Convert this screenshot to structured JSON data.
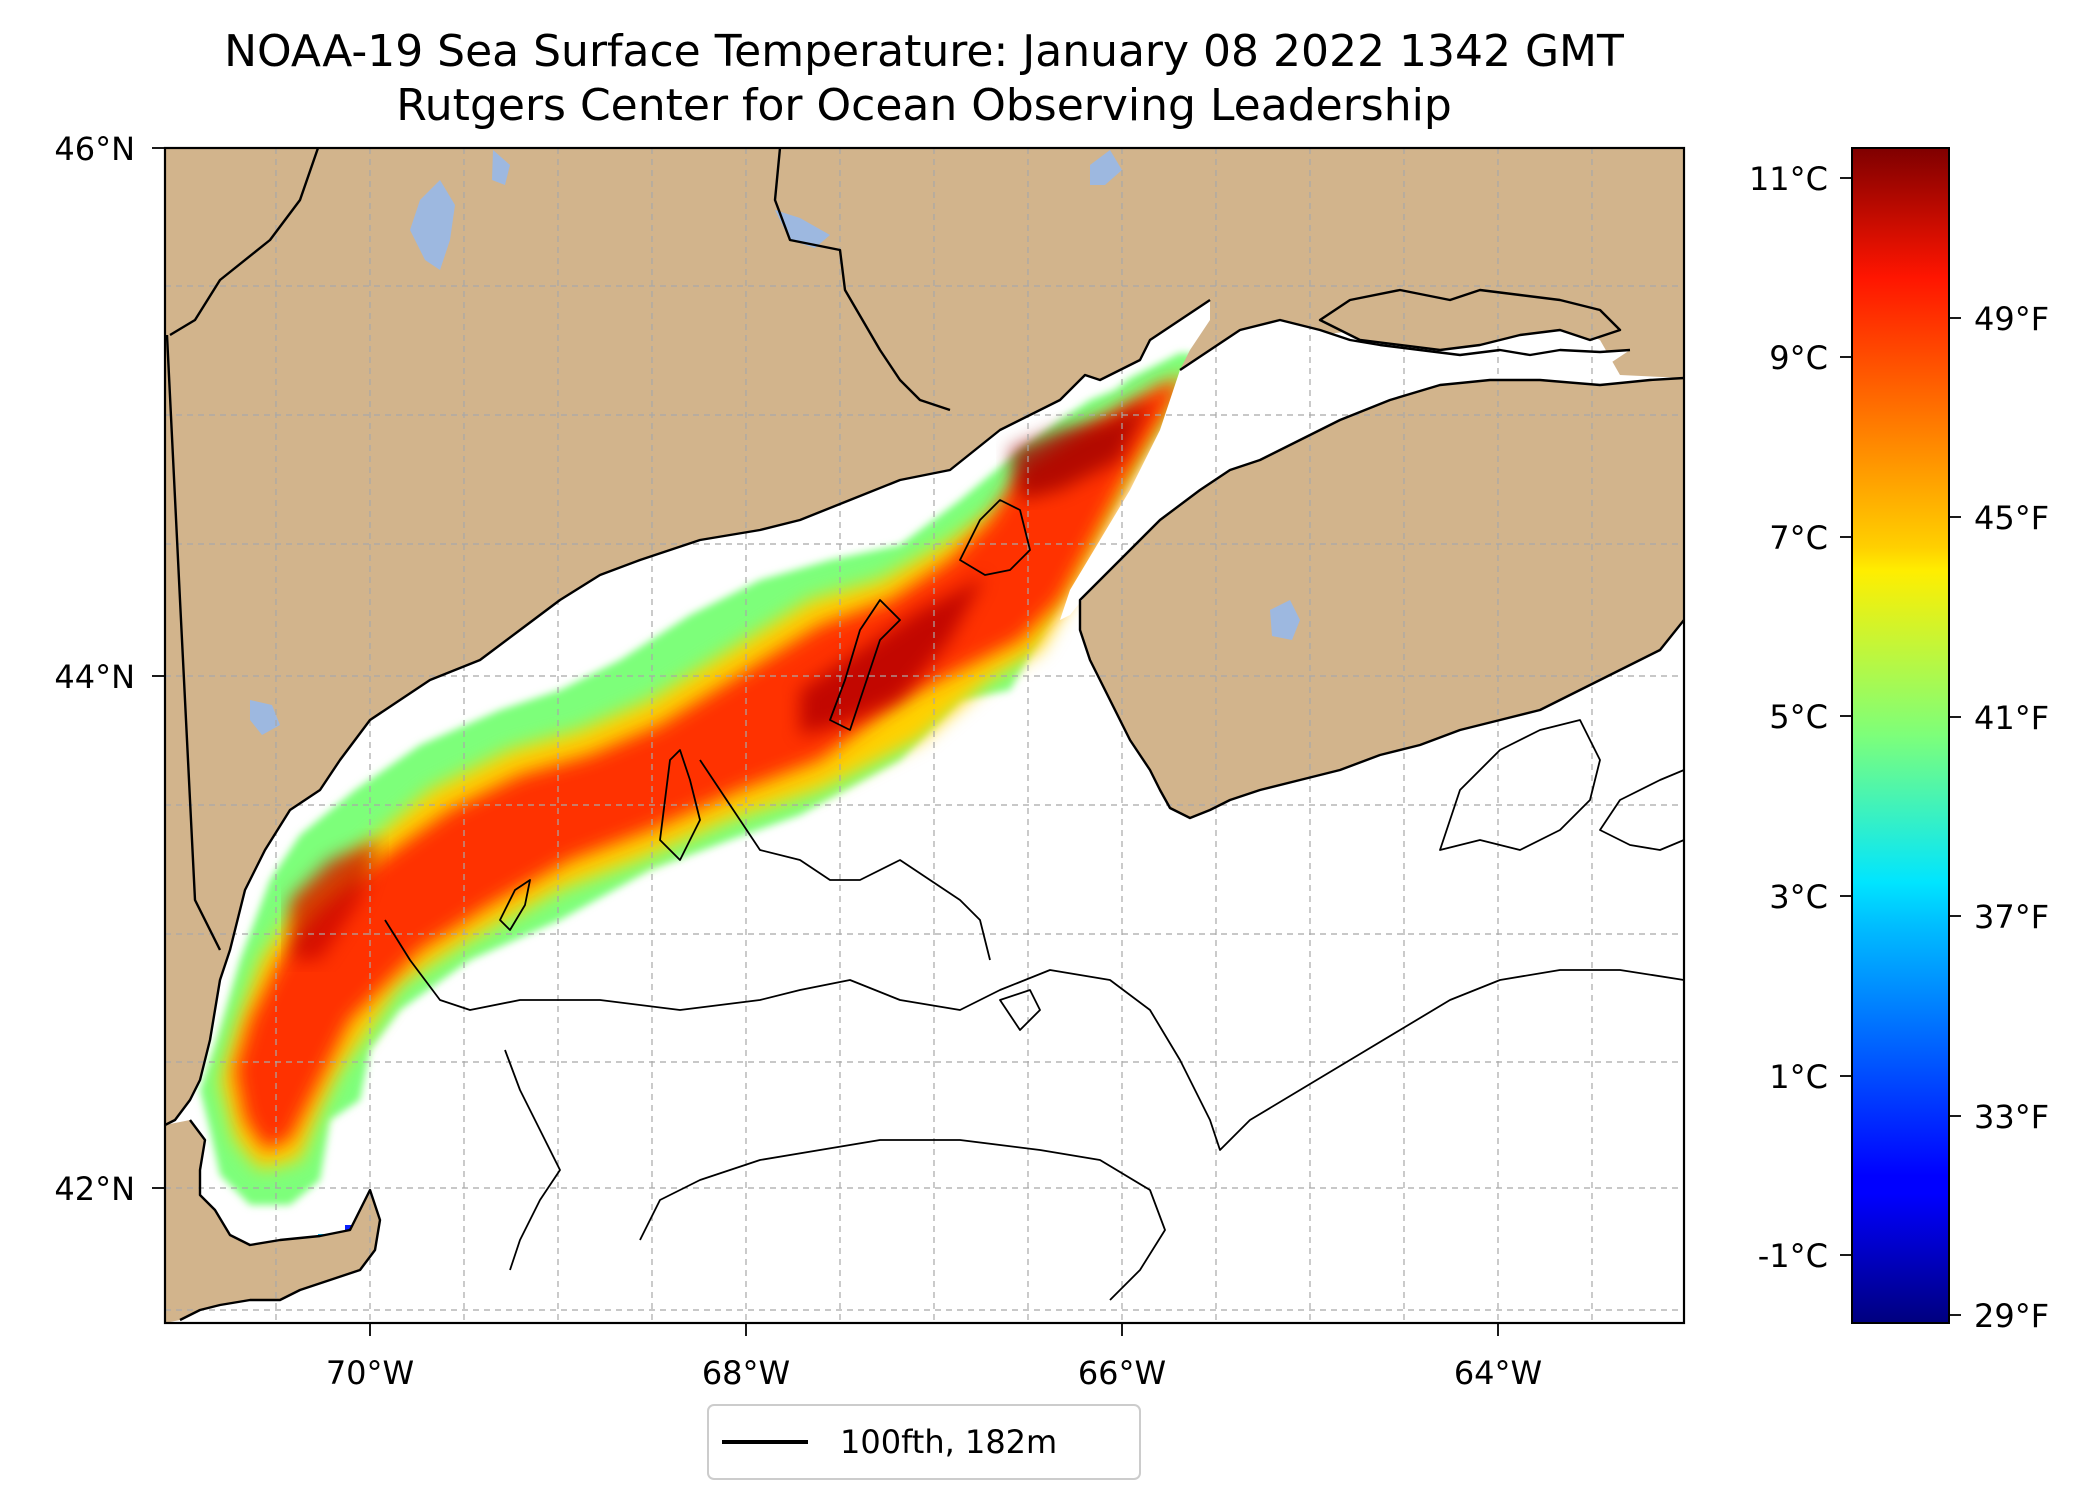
{
  "title": {
    "line1": "NOAA-19 Sea Surface Temperature: January 08 2022 1342 GMT",
    "line2": "Rutgers Center for Ocean Observing Leadership"
  },
  "chart_data": {
    "type": "heatmap",
    "variable": "Sea Surface Temperature",
    "satellite": "NOAA-19",
    "xlim": [
      -71.2,
      -63.1
    ],
    "ylim": [
      41.45,
      46.0
    ],
    "x_ticks": [
      {
        "value": -70,
        "label": "70°W"
      },
      {
        "value": -68,
        "label": "68°W"
      },
      {
        "value": -66,
        "label": "66°W"
      },
      {
        "value": -64,
        "label": "64°W"
      }
    ],
    "y_ticks": [
      {
        "value": 46,
        "label": "46°N"
      },
      {
        "value": 44,
        "label": "44°N"
      },
      {
        "value": 42,
        "label": "42°N"
      }
    ],
    "colorbar": {
      "colormap": "jet",
      "range_c": [
        -1.8,
        11.3
      ],
      "celsius_ticks": [
        {
          "value": 11,
          "label": "11°C"
        },
        {
          "value": 9,
          "label": "9°C"
        },
        {
          "value": 7,
          "label": "7°C"
        },
        {
          "value": 5,
          "label": "5°C"
        },
        {
          "value": 3,
          "label": "3°C"
        },
        {
          "value": 1,
          "label": "1°C"
        },
        {
          "value": -1,
          "label": "-1°C"
        }
      ],
      "fahrenheit_ticks": [
        {
          "value": 49,
          "label": "49°F"
        },
        {
          "value": 45,
          "label": "45°F"
        },
        {
          "value": 41,
          "label": "41°F"
        },
        {
          "value": 37,
          "label": "37°F"
        },
        {
          "value": 33,
          "label": "33°F"
        },
        {
          "value": 29,
          "label": "29°F"
        }
      ]
    },
    "legend": {
      "entries": [
        {
          "label": "100fth, 182m",
          "style": "black-line"
        }
      ],
      "placement": "bottom-center"
    }
  },
  "colors": {
    "land": "#d2b48c",
    "lakes": "#9db8e0",
    "ocean_no_data": "#ffffff",
    "coastline": "#000000"
  }
}
